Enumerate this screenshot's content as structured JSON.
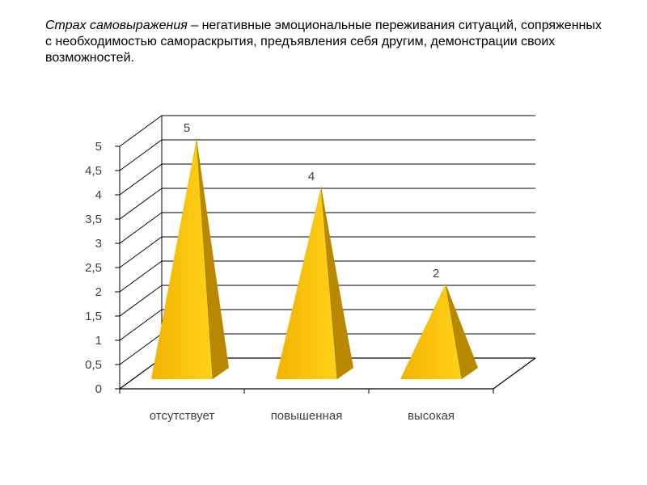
{
  "caption": {
    "term": "Страх самовыражения",
    "text": " – негативные эмоциональные переживания ситуаций, сопряженных с необходимостью самораскрытия, предъявления себя другим, демонстрации своих возможностей."
  },
  "chart_data": {
    "type": "bar",
    "shape": "3d-pyramid",
    "categories": [
      "отсутствует",
      "повышенная",
      "высокая"
    ],
    "values": [
      5,
      4,
      2
    ],
    "data_labels": [
      "5",
      "4",
      "2"
    ],
    "y_ticks": [
      "0",
      "0,5",
      "1",
      "1,5",
      "2",
      "2,5",
      "3",
      "3,5",
      "4",
      "4,5",
      "5"
    ],
    "ylim": [
      0,
      5
    ],
    "grid": true,
    "legend": "none",
    "colors": {
      "face_light": "#FFD21A",
      "face_main": "#F5B800",
      "face_dark": "#B88800",
      "face_shadow": "#8C6A00",
      "grid": "#000000",
      "wall": "#ffffff"
    }
  }
}
